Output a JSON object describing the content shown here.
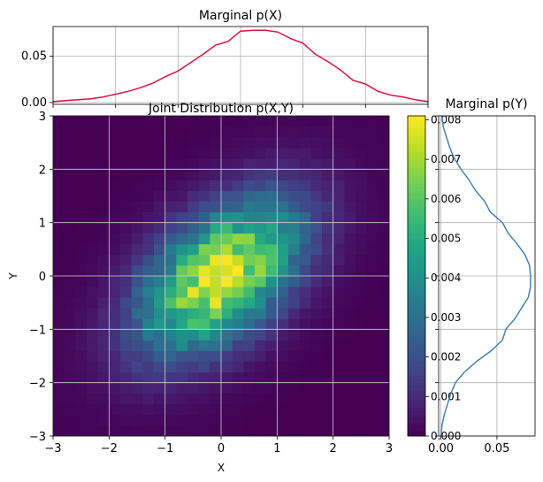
{
  "chart_data": [
    {
      "id": "marginal_x",
      "type": "line",
      "title": "Marginal p(X)",
      "xlabel": "",
      "ylabel": "",
      "xlim": [
        -3,
        3
      ],
      "ylim": [
        -0.002,
        0.082
      ],
      "yticks": [
        0.0,
        0.05
      ],
      "ytick_labels": [
        "0.00",
        "0.05"
      ],
      "grid": true,
      "line_color": "#dc143c",
      "x": [
        -3.0,
        -2.8,
        -2.6,
        -2.4,
        -2.2,
        -2.0,
        -1.8,
        -1.6,
        -1.4,
        -1.2,
        -1.0,
        -0.8,
        -0.6,
        -0.4,
        -0.2,
        0.0,
        0.2,
        0.4,
        0.6,
        0.8,
        1.0,
        1.2,
        1.4,
        1.6,
        1.8,
        2.0,
        2.2,
        2.4,
        2.6,
        2.8,
        3.0
      ],
      "values": [
        0.001,
        0.002,
        0.003,
        0.004,
        0.006,
        0.009,
        0.012,
        0.016,
        0.021,
        0.028,
        0.034,
        0.043,
        0.052,
        0.062,
        0.066,
        0.077,
        0.078,
        0.078,
        0.076,
        0.069,
        0.064,
        0.052,
        0.044,
        0.035,
        0.024,
        0.02,
        0.012,
        0.008,
        0.006,
        0.003,
        0.001
      ]
    },
    {
      "id": "joint",
      "type": "heatmap",
      "title": "Joint Distribution p(X,Y)",
      "xlabel": "X",
      "ylabel": "Y",
      "xlim": [
        -3,
        3
      ],
      "ylim": [
        -3,
        3
      ],
      "xticks": [
        -3,
        -2,
        -1,
        0,
        1,
        2,
        3
      ],
      "yticks": [
        -3,
        -2,
        -1,
        0,
        1,
        2,
        3
      ],
      "grid": true,
      "bins": 30,
      "colormap": "viridis",
      "distribution": {
        "mean": [
          0,
          0
        ],
        "std": [
          1,
          1
        ],
        "correlation": 0.5
      },
      "vmax": 0.0081
    },
    {
      "id": "colorbar",
      "type": "colorbar",
      "range": [
        0,
        0.0081
      ],
      "ticks": [
        0.0,
        0.001,
        0.002,
        0.003,
        0.004,
        0.005,
        0.006,
        0.007,
        0.008
      ],
      "tick_labels": [
        "0.000",
        "0.001",
        "0.002",
        "0.003",
        "0.004",
        "0.005",
        "0.006",
        "0.007",
        "0.008"
      ]
    },
    {
      "id": "marginal_y",
      "type": "line",
      "title": "Marginal p(Y)",
      "xlim": [
        -0.002,
        0.084
      ],
      "xticks": [
        0.0,
        0.05
      ],
      "xtick_labels": [
        "0.00",
        "0.05"
      ],
      "ylim": [
        -3,
        3
      ],
      "grid": true,
      "line_color": "#4682b4",
      "y": [
        -3.0,
        -2.8,
        -2.6,
        -2.4,
        -2.2,
        -2.0,
        -1.8,
        -1.6,
        -1.4,
        -1.2,
        -1.0,
        -0.8,
        -0.6,
        -0.4,
        -0.2,
        0.0,
        0.2,
        0.4,
        0.6,
        0.8,
        1.0,
        1.2,
        1.4,
        1.6,
        1.8,
        2.0,
        2.2,
        2.4,
        2.6,
        2.8,
        3.0
      ],
      "values": [
        0.0,
        0.001,
        0.003,
        0.006,
        0.009,
        0.013,
        0.021,
        0.032,
        0.045,
        0.055,
        0.058,
        0.066,
        0.072,
        0.078,
        0.08,
        0.08,
        0.079,
        0.075,
        0.068,
        0.06,
        0.055,
        0.044,
        0.039,
        0.031,
        0.025,
        0.018,
        0.012,
        0.008,
        0.005,
        0.002,
        0.001
      ]
    }
  ]
}
